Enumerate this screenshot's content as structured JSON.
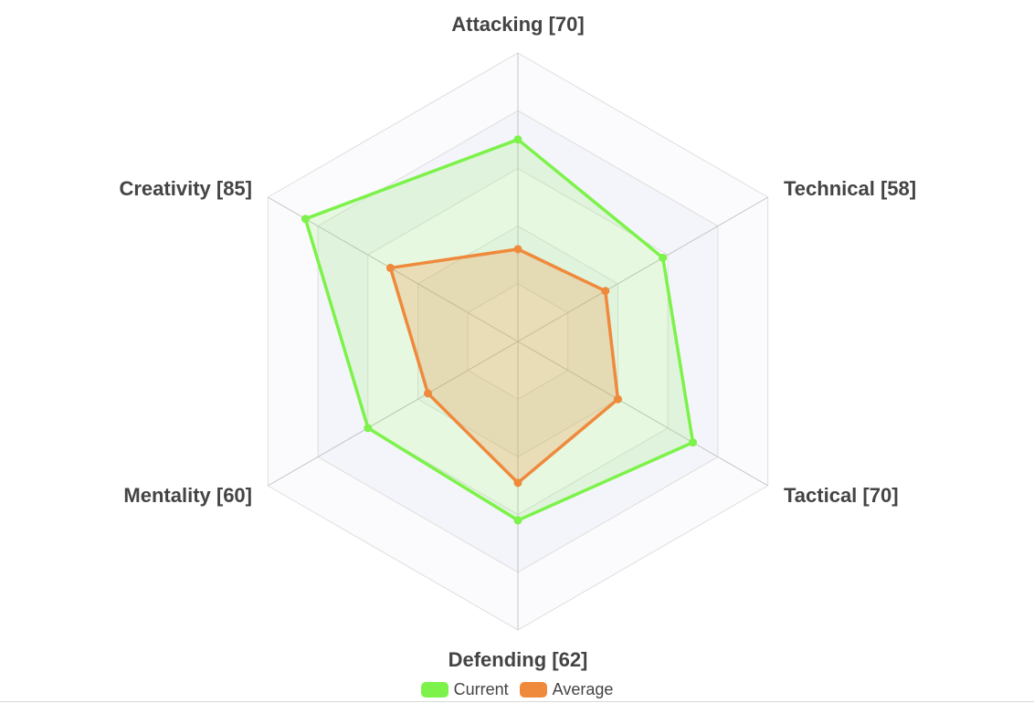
{
  "chart_data": {
    "type": "radar",
    "axes": [
      {
        "name": "Attacking",
        "label": "Attacking [70]"
      },
      {
        "name": "Technical",
        "label": "Technical [58]"
      },
      {
        "name": "Tactical",
        "label": "Tactical [70]"
      },
      {
        "name": "Defending",
        "label": "Defending [62]"
      },
      {
        "name": "Mentality",
        "label": "Mentality [60]"
      },
      {
        "name": "Creativity",
        "label": "Creativity [85]"
      }
    ],
    "rlim": [
      0,
      100
    ],
    "rings": 5,
    "series": [
      {
        "name": "Current",
        "color": "#7cf24a",
        "values": [
          70,
          58,
          70,
          62,
          60,
          85
        ]
      },
      {
        "name": "Average",
        "color": "#ef8a3c",
        "values": [
          32,
          35,
          40,
          49,
          36,
          51
        ]
      }
    ],
    "legend_position": "bottom-center"
  }
}
